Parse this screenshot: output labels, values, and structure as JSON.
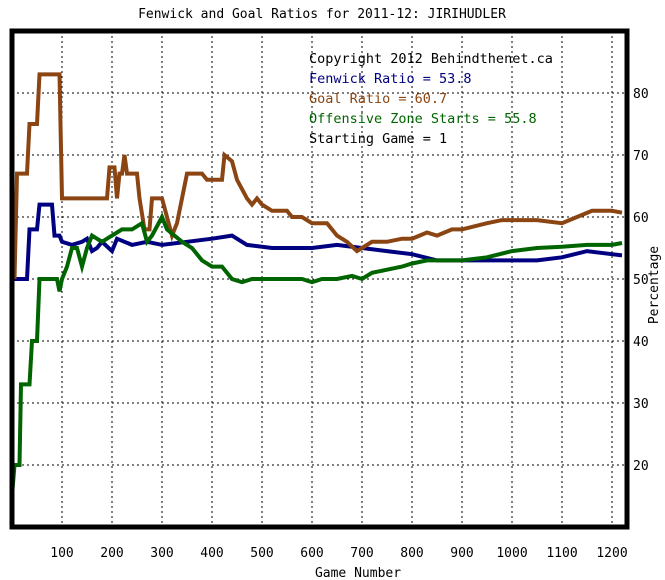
{
  "chart_data": {
    "type": "line",
    "title": "Fenwick and Goal Ratios for 2011-12: JIRIHUDLER",
    "xlabel": "Game Number",
    "ylabel": "Percentage",
    "xlim": [
      0,
      1230
    ],
    "ylim": [
      10,
      90
    ],
    "xticks": [
      100,
      200,
      300,
      400,
      500,
      600,
      700,
      800,
      900,
      1000,
      1100,
      1200
    ],
    "yticks": [
      20,
      30,
      40,
      50,
      60,
      70,
      80
    ],
    "grid": true,
    "legend_position": "top-right",
    "annotations": {
      "copyright": "Copyright 2012 Behindthenet.ca",
      "starting_game": "Starting Game = 1"
    },
    "series": [
      {
        "name": "Fenwick Ratio",
        "label": "Fenwick Ratio = 53.8",
        "color": "#000080",
        "points": [
          [
            0,
            58
          ],
          [
            5,
            50
          ],
          [
            30,
            50
          ],
          [
            35,
            58
          ],
          [
            50,
            58
          ],
          [
            55,
            62
          ],
          [
            80,
            62
          ],
          [
            85,
            57
          ],
          [
            95,
            57
          ],
          [
            100,
            56
          ],
          [
            120,
            55.5
          ],
          [
            140,
            56
          ],
          [
            150,
            56.5
          ],
          [
            160,
            54.5
          ],
          [
            170,
            55
          ],
          [
            180,
            56
          ],
          [
            200,
            54.5
          ],
          [
            210,
            56.5
          ],
          [
            240,
            55.5
          ],
          [
            270,
            56
          ],
          [
            300,
            55.5
          ],
          [
            350,
            56
          ],
          [
            400,
            56.5
          ],
          [
            440,
            57
          ],
          [
            470,
            55.5
          ],
          [
            520,
            55
          ],
          [
            600,
            55
          ],
          [
            650,
            55.5
          ],
          [
            700,
            55
          ],
          [
            750,
            54.5
          ],
          [
            800,
            54
          ],
          [
            850,
            53
          ],
          [
            900,
            53
          ],
          [
            950,
            53
          ],
          [
            1000,
            53
          ],
          [
            1050,
            53
          ],
          [
            1100,
            53.5
          ],
          [
            1150,
            54.5
          ],
          [
            1200,
            54
          ],
          [
            1220,
            53.8
          ]
        ]
      },
      {
        "name": "Goal Ratio",
        "label": "Goal Ratio = 60.7",
        "color": "#8B4513",
        "points": [
          [
            0,
            62
          ],
          [
            5,
            50
          ],
          [
            10,
            67
          ],
          [
            30,
            67
          ],
          [
            35,
            75
          ],
          [
            50,
            75
          ],
          [
            55,
            83
          ],
          [
            95,
            83
          ],
          [
            100,
            63
          ],
          [
            190,
            63
          ],
          [
            195,
            68
          ],
          [
            205,
            68
          ],
          [
            210,
            63
          ],
          [
            215,
            67
          ],
          [
            220,
            67
          ],
          [
            225,
            70
          ],
          [
            230,
            67
          ],
          [
            250,
            67
          ],
          [
            255,
            63
          ],
          [
            265,
            58
          ],
          [
            275,
            58
          ],
          [
            280,
            63
          ],
          [
            300,
            63
          ],
          [
            320,
            57
          ],
          [
            330,
            59
          ],
          [
            340,
            63
          ],
          [
            350,
            67
          ],
          [
            380,
            67
          ],
          [
            390,
            66
          ],
          [
            420,
            66
          ],
          [
            425,
            70
          ],
          [
            440,
            69
          ],
          [
            450,
            66
          ],
          [
            470,
            63
          ],
          [
            480,
            62
          ],
          [
            490,
            63
          ],
          [
            500,
            62
          ],
          [
            520,
            61
          ],
          [
            550,
            61
          ],
          [
            560,
            60
          ],
          [
            580,
            60
          ],
          [
            600,
            59
          ],
          [
            630,
            59
          ],
          [
            650,
            57
          ],
          [
            670,
            56
          ],
          [
            690,
            54.5
          ],
          [
            700,
            55
          ],
          [
            720,
            56
          ],
          [
            750,
            56
          ],
          [
            780,
            56.5
          ],
          [
            800,
            56.5
          ],
          [
            830,
            57.5
          ],
          [
            850,
            57
          ],
          [
            880,
            58
          ],
          [
            900,
            58
          ],
          [
            950,
            59
          ],
          [
            980,
            59.5
          ],
          [
            1000,
            59.5
          ],
          [
            1050,
            59.5
          ],
          [
            1100,
            59
          ],
          [
            1130,
            60
          ],
          [
            1160,
            61
          ],
          [
            1200,
            61
          ],
          [
            1220,
            60.7
          ]
        ]
      },
      {
        "name": "Offensive Zone Starts",
        "label": "Offensive Zone Starts = 55.8",
        "color": "#006400",
        "points": [
          [
            0,
            15
          ],
          [
            5,
            20
          ],
          [
            15,
            20
          ],
          [
            18,
            33
          ],
          [
            35,
            33
          ],
          [
            40,
            40
          ],
          [
            50,
            40
          ],
          [
            55,
            50
          ],
          [
            90,
            50
          ],
          [
            95,
            48
          ],
          [
            100,
            50
          ],
          [
            110,
            52
          ],
          [
            120,
            55
          ],
          [
            130,
            55
          ],
          [
            140,
            52
          ],
          [
            150,
            55
          ],
          [
            160,
            57
          ],
          [
            180,
            56
          ],
          [
            200,
            57
          ],
          [
            220,
            58
          ],
          [
            240,
            58
          ],
          [
            260,
            59
          ],
          [
            270,
            56
          ],
          [
            280,
            57
          ],
          [
            300,
            60
          ],
          [
            310,
            58
          ],
          [
            340,
            56
          ],
          [
            360,
            55
          ],
          [
            380,
            53
          ],
          [
            400,
            52
          ],
          [
            420,
            52
          ],
          [
            440,
            50
          ],
          [
            460,
            49.5
          ],
          [
            480,
            50
          ],
          [
            500,
            50
          ],
          [
            530,
            50
          ],
          [
            560,
            50
          ],
          [
            580,
            50
          ],
          [
            600,
            49.5
          ],
          [
            620,
            50
          ],
          [
            650,
            50
          ],
          [
            680,
            50.5
          ],
          [
            700,
            50
          ],
          [
            720,
            51
          ],
          [
            750,
            51.5
          ],
          [
            780,
            52
          ],
          [
            800,
            52.5
          ],
          [
            830,
            53
          ],
          [
            860,
            53
          ],
          [
            900,
            53
          ],
          [
            950,
            53.5
          ],
          [
            1000,
            54.5
          ],
          [
            1050,
            55
          ],
          [
            1100,
            55.2
          ],
          [
            1150,
            55.5
          ],
          [
            1200,
            55.5
          ],
          [
            1220,
            55.8
          ]
        ]
      }
    ]
  }
}
